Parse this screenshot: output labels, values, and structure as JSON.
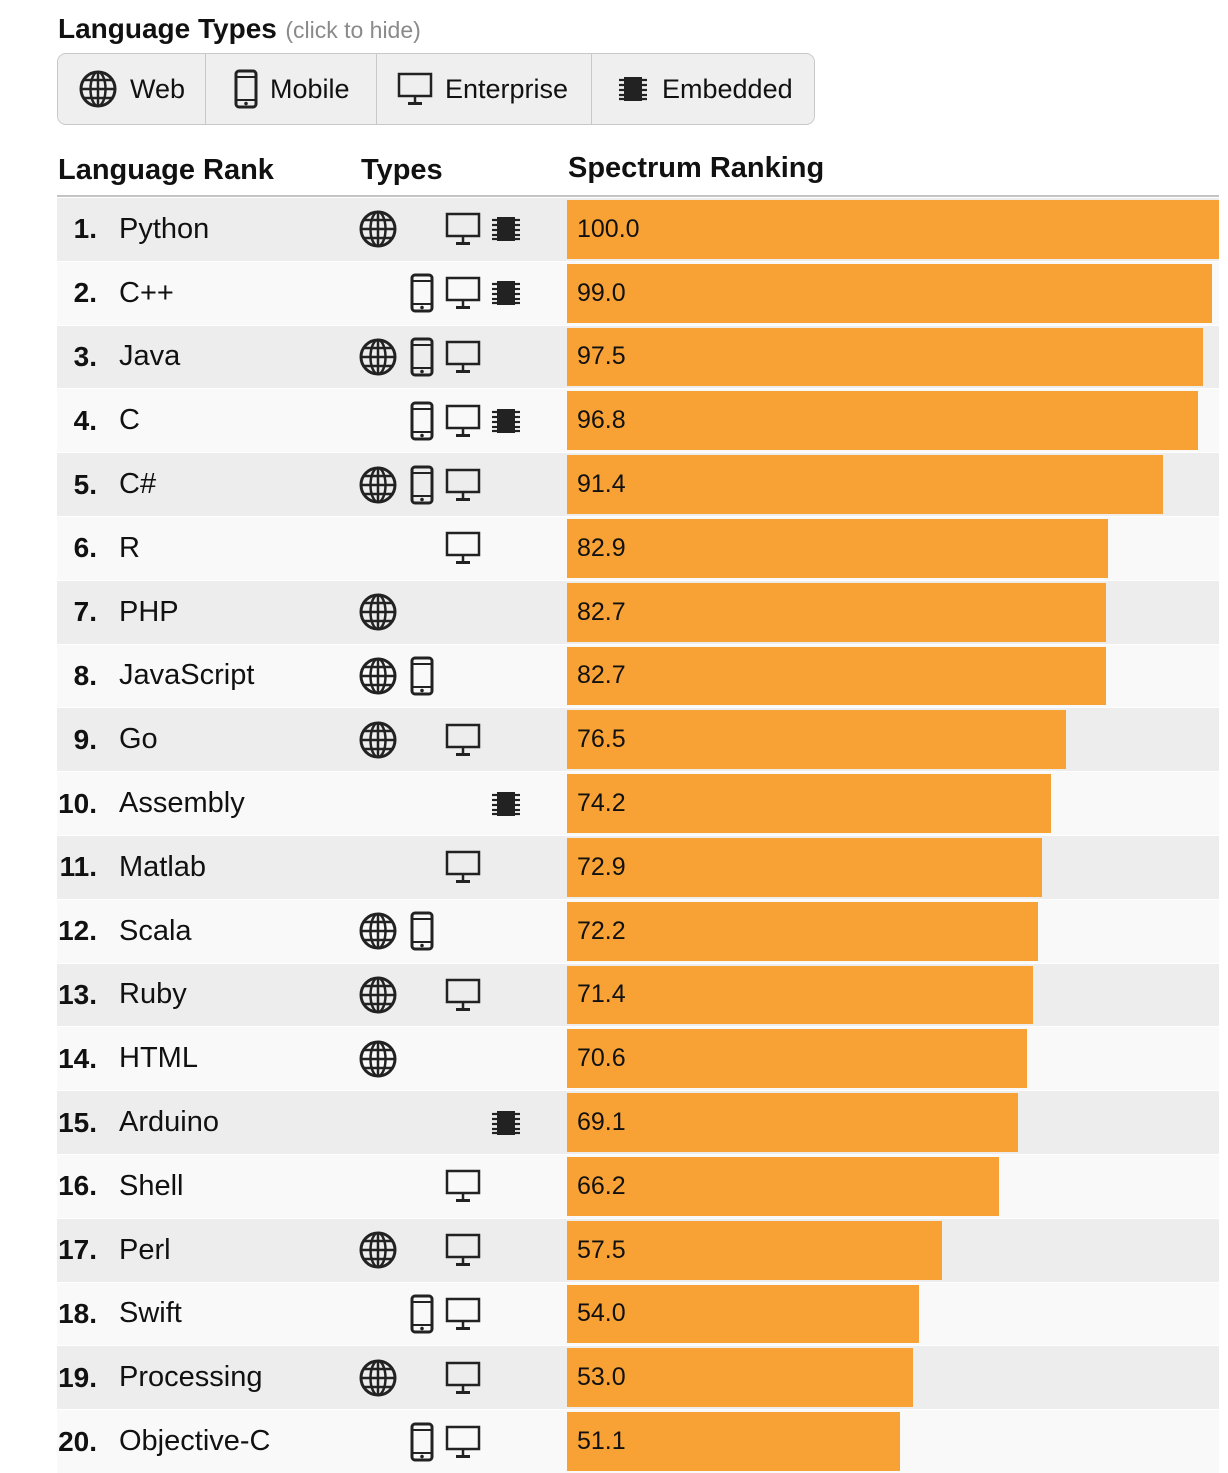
{
  "language_types": {
    "title": "Language Types",
    "hint": "(click to hide)",
    "filters": [
      {
        "key": "web",
        "label": "Web",
        "icon": "globe-icon"
      },
      {
        "key": "mobile",
        "label": "Mobile",
        "icon": "phone-icon"
      },
      {
        "key": "enterprise",
        "label": "Enterprise",
        "icon": "monitor-icon"
      },
      {
        "key": "embedded",
        "label": "Embedded",
        "icon": "chip-icon"
      }
    ]
  },
  "table_headers": {
    "rank": "Language Rank",
    "types": "Types",
    "spectrum": "Spectrum Ranking"
  },
  "colors": {
    "bar": "#f8a235",
    "row_odd": "#ededed",
    "row_even": "#f9f9f9"
  },
  "chart_data": {
    "type": "bar",
    "orientation": "horizontal",
    "title": "",
    "xlabel": "Spectrum Ranking",
    "ylabel": "Language Rank",
    "xlim": [
      0,
      100
    ],
    "rows": [
      {
        "rank": "1.",
        "name": "Python",
        "value": 100.0,
        "label": "100.0",
        "types": [
          "web",
          "enterprise",
          "embedded"
        ]
      },
      {
        "rank": "2.",
        "name": "C++",
        "value": 99.0,
        "label": "99.0",
        "types": [
          "mobile",
          "enterprise",
          "embedded"
        ]
      },
      {
        "rank": "3.",
        "name": "Java",
        "value": 97.5,
        "label": "97.5",
        "types": [
          "web",
          "mobile",
          "enterprise"
        ]
      },
      {
        "rank": "4.",
        "name": "C",
        "value": 96.8,
        "label": "96.8",
        "types": [
          "mobile",
          "enterprise",
          "embedded"
        ]
      },
      {
        "rank": "5.",
        "name": "C#",
        "value": 91.4,
        "label": "91.4",
        "types": [
          "web",
          "mobile",
          "enterprise"
        ]
      },
      {
        "rank": "6.",
        "name": "R",
        "value": 82.9,
        "label": "82.9",
        "types": [
          "enterprise"
        ]
      },
      {
        "rank": "7.",
        "name": "PHP",
        "value": 82.7,
        "label": "82.7",
        "types": [
          "web"
        ]
      },
      {
        "rank": "8.",
        "name": "JavaScript",
        "value": 82.7,
        "label": "82.7",
        "types": [
          "web",
          "mobile"
        ]
      },
      {
        "rank": "9.",
        "name": "Go",
        "value": 76.5,
        "label": "76.5",
        "types": [
          "web",
          "enterprise"
        ]
      },
      {
        "rank": "10.",
        "name": "Assembly",
        "value": 74.2,
        "label": "74.2",
        "types": [
          "embedded"
        ]
      },
      {
        "rank": "11.",
        "name": "Matlab",
        "value": 72.9,
        "label": "72.9",
        "types": [
          "enterprise"
        ]
      },
      {
        "rank": "12.",
        "name": "Scala",
        "value": 72.2,
        "label": "72.2",
        "types": [
          "web",
          "mobile"
        ]
      },
      {
        "rank": "13.",
        "name": "Ruby",
        "value": 71.4,
        "label": "71.4",
        "types": [
          "web",
          "enterprise"
        ]
      },
      {
        "rank": "14.",
        "name": "HTML",
        "value": 70.6,
        "label": "70.6",
        "types": [
          "web"
        ]
      },
      {
        "rank": "15.",
        "name": "Arduino",
        "value": 69.1,
        "label": "69.1",
        "types": [
          "embedded"
        ]
      },
      {
        "rank": "16.",
        "name": "Shell",
        "value": 66.2,
        "label": "66.2",
        "types": [
          "enterprise"
        ]
      },
      {
        "rank": "17.",
        "name": "Perl",
        "value": 57.5,
        "label": "57.5",
        "types": [
          "web",
          "enterprise"
        ]
      },
      {
        "rank": "18.",
        "name": "Swift",
        "value": 54.0,
        "label": "54.0",
        "types": [
          "mobile",
          "enterprise"
        ]
      },
      {
        "rank": "19.",
        "name": "Processing",
        "value": 53.0,
        "label": "53.0",
        "types": [
          "web",
          "enterprise"
        ]
      },
      {
        "rank": "20.",
        "name": "Objective-C",
        "value": 51.1,
        "label": "51.1",
        "types": [
          "mobile",
          "enterprise"
        ]
      }
    ]
  }
}
